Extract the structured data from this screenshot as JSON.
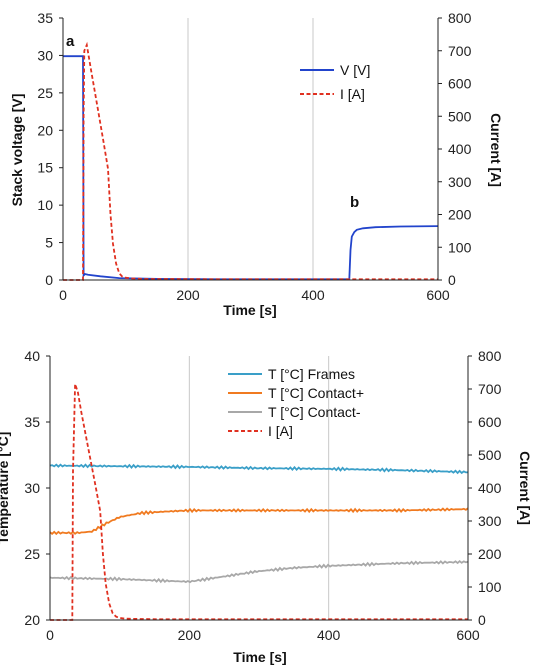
{
  "chart_data": [
    {
      "type": "line",
      "xlabel": "Time [s]",
      "ylabel_left": "Stack voltage [V]",
      "ylabel_right": "Current [A]",
      "xlim": [
        0,
        600
      ],
      "ylim_left": [
        0,
        35
      ],
      "ylim_right": [
        0,
        800
      ],
      "x_ticks": [
        "0",
        "200",
        "400",
        "600"
      ],
      "y_ticks_left": [
        "0",
        "5",
        "10",
        "15",
        "20",
        "25",
        "30",
        "35"
      ],
      "y_ticks_right": [
        "0",
        "100",
        "200",
        "300",
        "400",
        "500",
        "600",
        "700",
        "800"
      ],
      "grid": "vertical",
      "legend_position": "top-right",
      "annotations": [
        {
          "label": "a",
          "x": 15,
          "y": 32
        },
        {
          "label": "b",
          "x": 470,
          "y": 10.5
        }
      ],
      "series": [
        {
          "name": "V [V]",
          "axis": "left",
          "color": "#2244cc",
          "style": "solid",
          "x": [
            0,
            32,
            33,
            34,
            35,
            40,
            60,
            90,
            150,
            250,
            350,
            445,
            458,
            460,
            462,
            466,
            470,
            480,
            500,
            540,
            600
          ],
          "y": [
            29.9,
            29.9,
            0.6,
            0.7,
            0.8,
            0.7,
            0.5,
            0.25,
            0.15,
            0.1,
            0.1,
            0.1,
            0.1,
            4.0,
            5.8,
            6.4,
            6.7,
            6.9,
            7.05,
            7.15,
            7.2
          ]
        },
        {
          "name": "I [A]",
          "axis": "right",
          "color": "#e03020",
          "style": "dashed",
          "x": [
            0,
            32,
            33,
            34,
            38,
            45,
            55,
            65,
            72,
            76,
            80,
            85,
            90,
            95,
            100,
            110,
            130,
            160,
            250,
            350,
            450,
            600
          ],
          "y": [
            0,
            0,
            500,
            700,
            718,
            640,
            530,
            420,
            340,
            200,
            110,
            50,
            20,
            10,
            7,
            5,
            3,
            3,
            2,
            2,
            2,
            2
          ]
        }
      ]
    },
    {
      "type": "line",
      "xlabel": "Time [s]",
      "ylabel_left": "Temperature [°C]",
      "ylabel_right": "Current [A]",
      "xlim": [
        0,
        600
      ],
      "ylim_left": [
        20,
        40
      ],
      "ylim_right": [
        0,
        800
      ],
      "x_ticks": [
        "0",
        "200",
        "400",
        "600"
      ],
      "y_ticks_left": [
        "20",
        "25",
        "30",
        "35",
        "40"
      ],
      "y_ticks_right": [
        "0",
        "100",
        "200",
        "300",
        "400",
        "500",
        "600",
        "700",
        "800"
      ],
      "grid": "vertical",
      "legend_position": "top-right",
      "series": [
        {
          "name": "T [°C] Frames",
          "axis": "left",
          "color": "#3a9fc8",
          "style": "solid",
          "x": [
            0,
            100,
            200,
            300,
            400,
            500,
            600
          ],
          "y": [
            31.7,
            31.65,
            31.6,
            31.5,
            31.45,
            31.35,
            31.2
          ]
        },
        {
          "name": "T [°C] Contact+",
          "axis": "left",
          "color": "#f07a20",
          "style": "solid",
          "x": [
            0,
            40,
            60,
            80,
            100,
            130,
            160,
            200,
            300,
            400,
            500,
            600
          ],
          "y": [
            26.6,
            26.6,
            26.7,
            27.3,
            27.8,
            28.1,
            28.2,
            28.3,
            28.3,
            28.3,
            28.3,
            28.4
          ]
        },
        {
          "name": "T [°C] Contact-",
          "axis": "left",
          "color": "#a8a8a8",
          "style": "solid",
          "x": [
            0,
            100,
            150,
            200,
            250,
            300,
            350,
            400,
            450,
            500,
            550,
            600
          ],
          "y": [
            23.2,
            23.1,
            23.0,
            22.9,
            23.3,
            23.7,
            23.95,
            24.1,
            24.2,
            24.3,
            24.35,
            24.4
          ]
        },
        {
          "name": "I [A]",
          "axis": "right",
          "color": "#e03020",
          "style": "dashed",
          "x": [
            0,
            32,
            33,
            36,
            40,
            45,
            55,
            65,
            72,
            76,
            80,
            85,
            90,
            95,
            100,
            110,
            130,
            160,
            250,
            350,
            450,
            600
          ],
          "y": [
            0,
            0,
            450,
            715,
            690,
            630,
            520,
            410,
            330,
            200,
            110,
            50,
            20,
            10,
            6,
            4,
            3,
            2,
            2,
            2,
            2,
            2
          ]
        }
      ]
    }
  ]
}
